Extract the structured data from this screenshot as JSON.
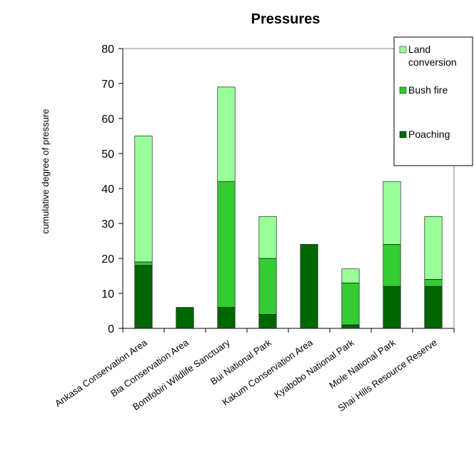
{
  "chart_data": {
    "type": "bar",
    "stacked": true,
    "title": "Pressures",
    "xlabel": "",
    "ylabel": "cumulative degree of pressure",
    "ylim": [
      0,
      80
    ],
    "yticks": [
      0,
      10,
      20,
      30,
      40,
      50,
      60,
      70,
      80
    ],
    "grid": false,
    "legend_position": "top-right",
    "categories": [
      "Ankasa Conservation Area",
      "Bia Conservation Area",
      "Bomfobiri Wildlife Sanctuary",
      "Bui National Park",
      "Kakum Conservation Area",
      "Kyabobo National Park",
      "Mole National Park",
      "Shai Hills Resource Reserve"
    ],
    "series": [
      {
        "name": "Poaching",
        "color": "#006600",
        "values": [
          18,
          6,
          6,
          4,
          24,
          1,
          12,
          12
        ]
      },
      {
        "name": "Bush fire",
        "color": "#33cc33",
        "values": [
          1,
          0,
          36,
          16,
          0,
          12,
          12,
          2
        ]
      },
      {
        "name": "Land conversion",
        "color": "#99ff99",
        "values": [
          36,
          0,
          27,
          12,
          0,
          4,
          18,
          18
        ]
      }
    ],
    "legend": [
      {
        "label_lines": [
          "Land",
          "conversion"
        ],
        "color": "#99ff99"
      },
      {
        "label_lines": [
          "Bush fire"
        ],
        "color": "#33cc33"
      },
      {
        "label_lines": [
          "Poaching"
        ],
        "color": "#006600"
      }
    ]
  }
}
